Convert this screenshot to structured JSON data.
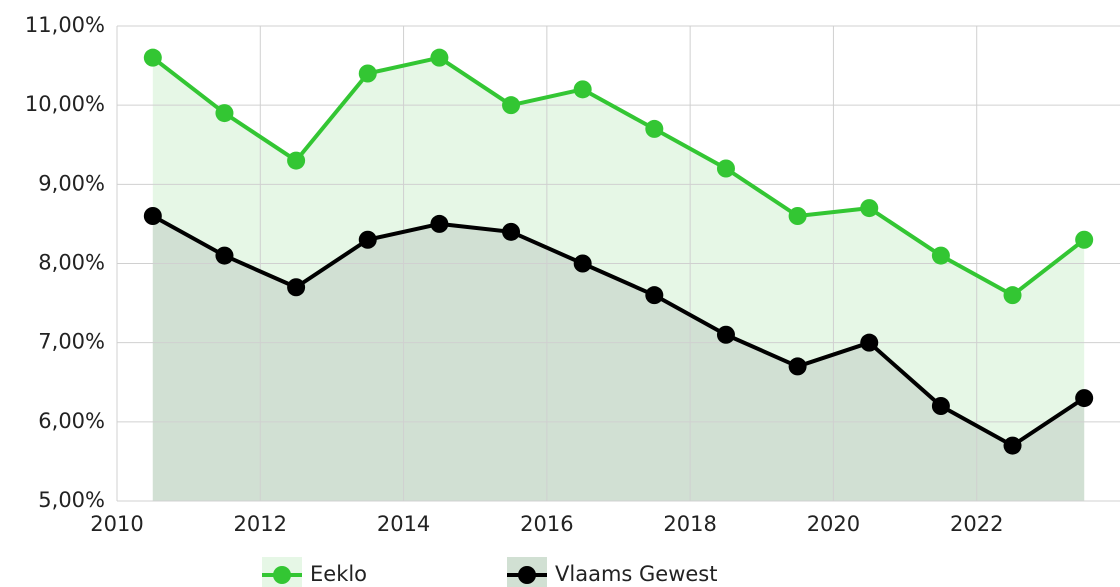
{
  "chart_data": {
    "type": "line",
    "x": [
      2010.5,
      2011.5,
      2012.5,
      2013.5,
      2014.5,
      2015.5,
      2016.5,
      2017.5,
      2018.5,
      2019.5,
      2020.5,
      2021.5,
      2022.5,
      2023.5
    ],
    "series": [
      {
        "name": "Eeklo",
        "color": "#33c633",
        "fill": "#e6f7e6",
        "values": [
          10.6,
          9.9,
          9.3,
          10.4,
          10.6,
          10.0,
          10.2,
          9.7,
          9.2,
          8.6,
          8.7,
          8.1,
          7.6,
          8.3
        ]
      },
      {
        "name": "Vlaams Gewest",
        "color": "#000000",
        "fill": "#d1e0d3",
        "values": [
          8.6,
          8.1,
          7.7,
          8.3,
          8.5,
          8.4,
          8.0,
          7.6,
          7.1,
          6.7,
          7.0,
          6.2,
          5.7,
          6.3
        ]
      }
    ],
    "xlim": [
      2010,
      2024
    ],
    "xticks": [
      2010,
      2012,
      2014,
      2016,
      2018,
      2020,
      2022
    ],
    "ylim": [
      5,
      11
    ],
    "yticks": [
      {
        "value": 5,
        "label": "5,00%"
      },
      {
        "value": 6,
        "label": "6,00%"
      },
      {
        "value": 7,
        "label": "7,00%"
      },
      {
        "value": 8,
        "label": "8,00%"
      },
      {
        "value": 9,
        "label": "9,00%"
      },
      {
        "value": 10,
        "label": "10,00%"
      },
      {
        "value": 11,
        "label": "11,00%"
      }
    ],
    "grid": true,
    "legend": "bottom"
  }
}
